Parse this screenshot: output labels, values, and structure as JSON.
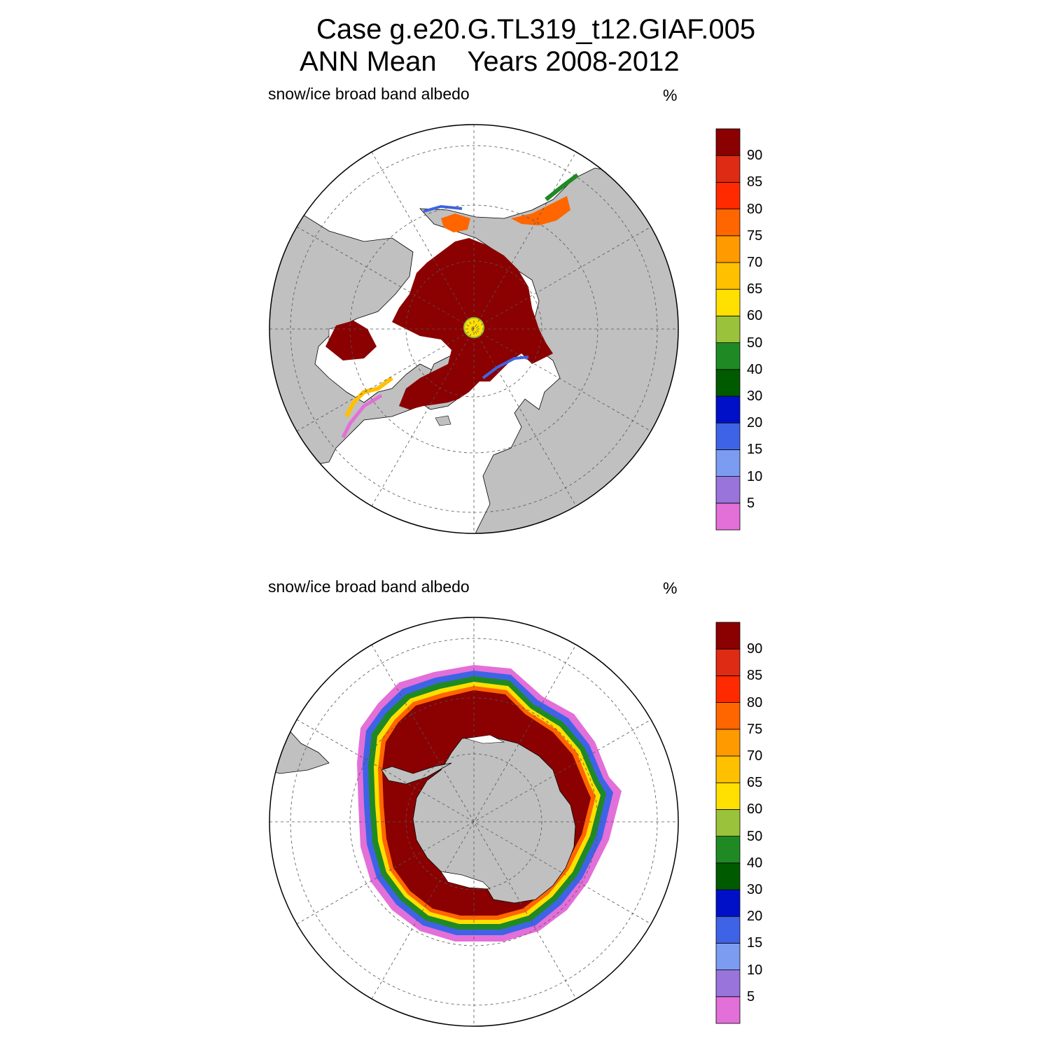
{
  "title": {
    "case_line": "Case g.e20.G.TL319_t12.GIAF.005",
    "period_line": "ANN Mean    Years 2008-2012"
  },
  "panels": [
    {
      "id": "north",
      "hemisphere": "Northern Hemisphere polar stereographic",
      "variable_label": "snow/ice broad band albedo",
      "units_label": "%"
    },
    {
      "id": "south",
      "hemisphere": "Southern Hemisphere polar stereographic",
      "variable_label": "snow/ice broad band albedo",
      "units_label": "%"
    }
  ],
  "colorbar": {
    "levels": [
      "5",
      "10",
      "15",
      "20",
      "30",
      "40",
      "50",
      "60",
      "65",
      "70",
      "75",
      "80",
      "85",
      "90"
    ],
    "colors_bottom_to_top": [
      "#e36fd9",
      "#9874db",
      "#7b9cf0",
      "#3f63e6",
      "#0010c8",
      "#005a00",
      "#1f8a24",
      "#9ac23a",
      "#ffe000",
      "#ffc000",
      "#ff9a00",
      "#ff6600",
      "#ff2a00",
      "#de2b14",
      "#8b0000"
    ]
  },
  "colors": {
    "land": "#c0c0c0",
    "ocean": "#ffffff",
    "ice_core": "#8b0000",
    "grid": "#555555"
  }
}
